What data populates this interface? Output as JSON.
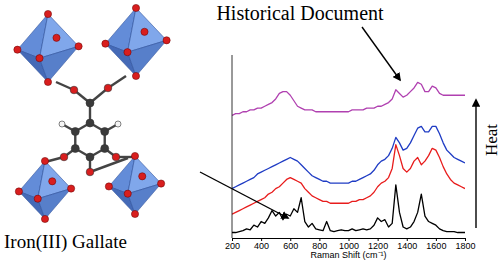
{
  "chart_data": {
    "type": "line",
    "x_label": "Raman Shift (cm⁻¹)",
    "annotations": [
      "Historical Document",
      "Iron(III) Gallate",
      "Heat"
    ],
    "x": [
      200,
      225,
      250,
      275,
      300,
      325,
      350,
      375,
      400,
      425,
      450,
      475,
      500,
      525,
      550,
      575,
      600,
      625,
      650,
      675,
      700,
      725,
      750,
      775,
      800,
      825,
      850,
      875,
      900,
      925,
      950,
      975,
      1000,
      1025,
      1050,
      1075,
      1100,
      1125,
      1150,
      1175,
      1200,
      1225,
      1250,
      1275,
      1300,
      1325,
      1350,
      1375,
      1400,
      1425,
      1450,
      1475,
      1500,
      1525,
      1550,
      1575,
      1600,
      1625,
      1650,
      1675,
      1700,
      1725,
      1750,
      1775,
      1800
    ],
    "xlim": [
      200,
      1800
    ],
    "xticks": [
      200,
      400,
      600,
      800,
      1000,
      1200,
      1400,
      1600,
      1800
    ],
    "ylim": [
      0,
      100
    ],
    "tick_labels": "x",
    "series": [
      {
        "color": "#b040b0",
        "values": [
          67,
          68,
          68,
          69,
          69,
          70,
          70,
          71,
          71,
          72,
          73,
          74,
          76,
          79,
          80,
          80,
          78,
          75,
          72,
          71,
          70,
          70,
          70,
          69,
          69,
          69,
          69,
          69,
          69,
          69,
          69,
          69,
          69,
          70,
          70,
          70,
          70,
          71,
          71,
          71,
          72,
          72,
          73,
          74,
          76,
          81,
          79,
          77,
          78,
          80,
          82,
          85,
          84,
          80,
          80,
          83,
          82,
          79,
          78,
          78,
          78,
          78,
          78,
          78,
          78
        ]
      },
      {
        "color": "#1f3cc4",
        "values": [
          27,
          28,
          29,
          30,
          31,
          32,
          33,
          35,
          36,
          37,
          38,
          39,
          40,
          41,
          42,
          43,
          44,
          43,
          42,
          40,
          38,
          36,
          34,
          33,
          32,
          31,
          31,
          30,
          30,
          30,
          30,
          30,
          30,
          31,
          31,
          32,
          33,
          34,
          35,
          37,
          40,
          42,
          43,
          45,
          49,
          55,
          52,
          48,
          49,
          52,
          56,
          60,
          61,
          58,
          58,
          61,
          61,
          57,
          52,
          48,
          46,
          44,
          43,
          42,
          41
        ]
      },
      {
        "color": "#e81c1c",
        "values": [
          13,
          14,
          15,
          16,
          17,
          18,
          19,
          20,
          21,
          22,
          24,
          25,
          27,
          28,
          30,
          32,
          33,
          32,
          31,
          30,
          27,
          25,
          23,
          22,
          21,
          20,
          20,
          19,
          19,
          19,
          19,
          19,
          19,
          20,
          20,
          21,
          21,
          22,
          23,
          25,
          28,
          30,
          31,
          33,
          38,
          51,
          45,
          38,
          36,
          38,
          42,
          44,
          40,
          42,
          45,
          49,
          48,
          44,
          39,
          35,
          32,
          30,
          29,
          28,
          27
        ]
      },
      {
        "color": "#000000",
        "values": [
          3,
          3,
          3.5,
          4,
          5,
          4.5,
          7,
          6,
          9,
          8,
          11,
          15,
          12,
          14,
          10,
          13,
          12,
          16,
          14,
          22,
          9,
          6,
          8,
          5,
          4.5,
          4,
          9,
          4,
          3.5,
          4,
          4.5,
          4,
          4,
          5,
          4,
          4.5,
          5,
          4.5,
          5,
          7,
          11,
          9,
          10,
          6,
          8,
          29,
          14,
          6,
          5,
          6,
          9,
          14,
          24,
          12,
          9,
          8,
          7,
          5,
          4,
          3.5,
          3.5,
          3.5,
          3,
          3,
          3
        ]
      }
    ]
  }
}
